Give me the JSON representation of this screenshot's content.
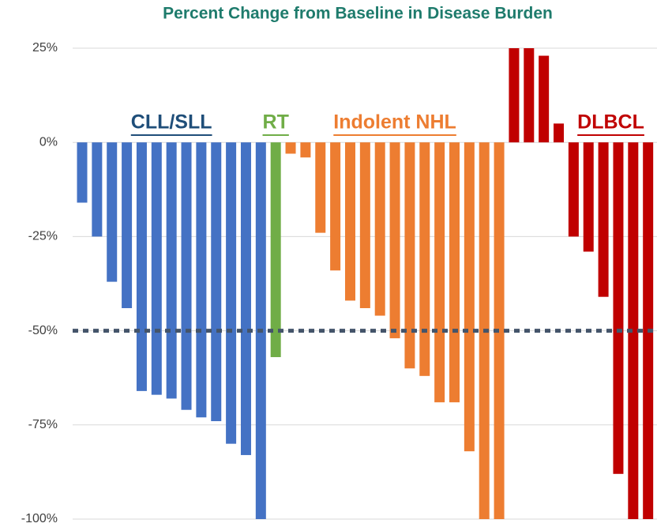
{
  "chart_data": {
    "type": "bar",
    "title": "Percent Change from Baseline in Disease Burden",
    "series": [
      {
        "name": "CLL/SLL",
        "color": "#4472c4",
        "label_color": "#1f4e79",
        "values": [
          -16,
          -25,
          -37,
          -44,
          -66,
          -67,
          -68,
          -71,
          -73,
          -74,
          -80,
          -83,
          -100
        ]
      },
      {
        "name": "RT",
        "color": "#70ad47",
        "label_color": "#70ad47",
        "values": [
          -57
        ]
      },
      {
        "name": "Indolent NHL",
        "color": "#ed7d31",
        "label_color": "#ed7d31",
        "values": [
          -3,
          -4,
          -24,
          -34,
          -42,
          -44,
          -46,
          -52,
          -60,
          -62,
          -69,
          -69,
          -82,
          -100,
          -100
        ]
      },
      {
        "name": "DLBCL",
        "color": "#c00000",
        "label_color": "#c00000",
        "values": [
          25,
          25,
          23,
          5,
          -25,
          -29,
          -41,
          -88,
          -100,
          -100
        ]
      }
    ],
    "ylim": [
      -100,
      25
    ],
    "yticks": [
      {
        "value": 25,
        "label": "25%"
      },
      {
        "value": 0,
        "label": "0%"
      },
      {
        "value": -25,
        "label": "-25%"
      },
      {
        "value": -50,
        "label": "-50%"
      },
      {
        "value": -75,
        "label": "-75%"
      },
      {
        "value": -100,
        "label": "-100%"
      }
    ],
    "reference_line": -50,
    "grid": true
  }
}
